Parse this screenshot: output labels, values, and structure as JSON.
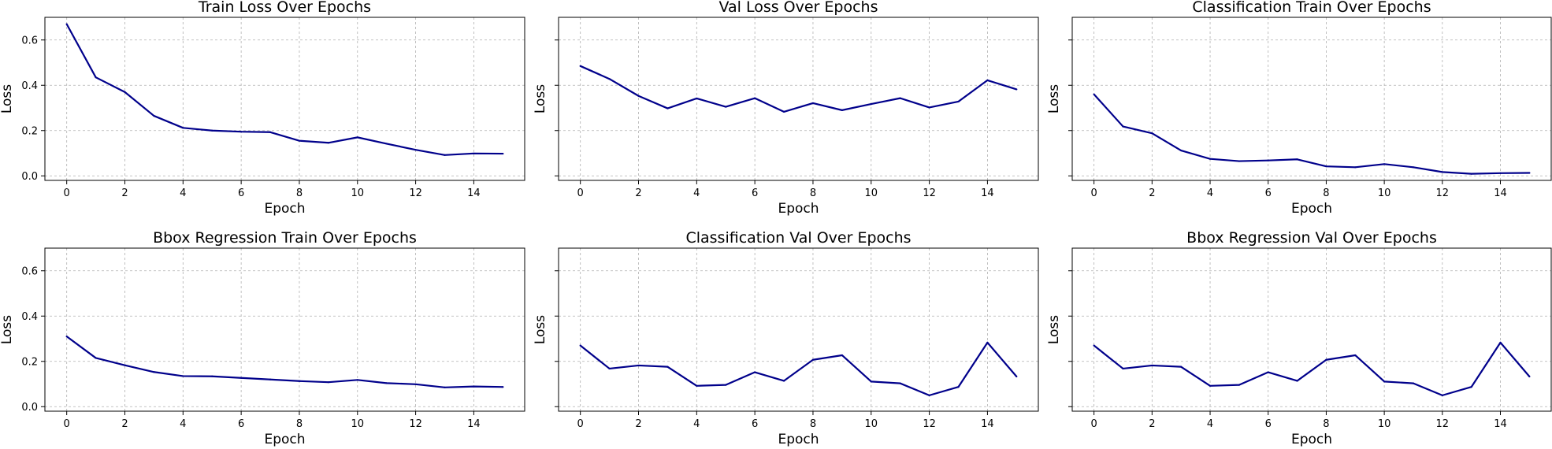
{
  "chart_data": [
    {
      "type": "line",
      "title": "Train Loss Over Epochs",
      "xlabel": "Epoch",
      "ylabel": "Loss",
      "xlim": [
        -0.75,
        15.75
      ],
      "ylim": [
        -0.02,
        0.7
      ],
      "xticks": [
        "0",
        "2",
        "4",
        "6",
        "8",
        "10",
        "12",
        "14"
      ],
      "yticks": [
        "0.0",
        "0.2",
        "0.4",
        "0.6"
      ],
      "show_ytick_labels": true,
      "grid": true,
      "color": "#00008b",
      "x": [
        0,
        1,
        2,
        3,
        4,
        5,
        6,
        7,
        8,
        9,
        10,
        11,
        12,
        13,
        14,
        15
      ],
      "y": [
        0.67,
        0.435,
        0.37,
        0.265,
        0.212,
        0.2,
        0.195,
        0.193,
        0.155,
        0.146,
        0.17,
        0.142,
        0.115,
        0.092,
        0.099,
        0.098
      ]
    },
    {
      "type": "line",
      "title": "Val Loss Over Epochs",
      "xlabel": "Epoch",
      "ylabel": "Loss",
      "xlim": [
        -0.75,
        15.75
      ],
      "ylim": [
        -0.02,
        0.7
      ],
      "xticks": [
        "0",
        "2",
        "4",
        "6",
        "8",
        "10",
        "12",
        "14"
      ],
      "yticks": [
        "0.0",
        "0.2",
        "0.4",
        "0.6"
      ],
      "show_ytick_labels": false,
      "grid": true,
      "color": "#00008b",
      "x": [
        0,
        1,
        2,
        3,
        4,
        5,
        6,
        7,
        8,
        9,
        10,
        11,
        12,
        13,
        14,
        15
      ],
      "y": [
        0.485,
        0.428,
        0.353,
        0.298,
        0.342,
        0.305,
        0.343,
        0.283,
        0.321,
        0.29,
        0.317,
        0.343,
        0.302,
        0.328,
        0.422,
        0.382
      ]
    },
    {
      "type": "line",
      "title": "Classification Train Over Epochs",
      "xlabel": "Epoch",
      "ylabel": "Loss",
      "xlim": [
        -0.75,
        15.75
      ],
      "ylim": [
        -0.02,
        0.7
      ],
      "xticks": [
        "0",
        "2",
        "4",
        "6",
        "8",
        "10",
        "12",
        "14"
      ],
      "yticks": [
        "0.0",
        "0.2",
        "0.4",
        "0.6"
      ],
      "show_ytick_labels": false,
      "grid": true,
      "color": "#00008b",
      "x": [
        0,
        1,
        2,
        3,
        4,
        5,
        6,
        7,
        8,
        9,
        10,
        11,
        12,
        13,
        14,
        15
      ],
      "y": [
        0.36,
        0.218,
        0.188,
        0.112,
        0.075,
        0.065,
        0.068,
        0.073,
        0.042,
        0.038,
        0.052,
        0.038,
        0.017,
        0.009,
        0.012,
        0.013
      ]
    },
    {
      "type": "line",
      "title": "Bbox Regression Train Over Epochs",
      "xlabel": "Epoch",
      "ylabel": "Loss",
      "xlim": [
        -0.75,
        15.75
      ],
      "ylim": [
        -0.02,
        0.7
      ],
      "xticks": [
        "0",
        "2",
        "4",
        "6",
        "8",
        "10",
        "12",
        "14"
      ],
      "yticks": [
        "0.0",
        "0.2",
        "0.4",
        "0.6"
      ],
      "show_ytick_labels": true,
      "grid": true,
      "color": "#00008b",
      "x": [
        0,
        1,
        2,
        3,
        4,
        5,
        6,
        7,
        8,
        9,
        10,
        11,
        12,
        13,
        14,
        15
      ],
      "y": [
        0.31,
        0.215,
        0.183,
        0.153,
        0.135,
        0.134,
        0.127,
        0.12,
        0.113,
        0.108,
        0.118,
        0.104,
        0.099,
        0.085,
        0.089,
        0.087
      ]
    },
    {
      "type": "line",
      "title": "Classification Val Over Epochs",
      "xlabel": "Epoch",
      "ylabel": "Loss",
      "xlim": [
        -0.75,
        15.75
      ],
      "ylim": [
        -0.02,
        0.7
      ],
      "xticks": [
        "0",
        "2",
        "4",
        "6",
        "8",
        "10",
        "12",
        "14"
      ],
      "yticks": [
        "0.0",
        "0.2",
        "0.4",
        "0.6"
      ],
      "show_ytick_labels": false,
      "grid": true,
      "color": "#00008b",
      "x": [
        0,
        1,
        2,
        3,
        4,
        5,
        6,
        7,
        8,
        9,
        10,
        11,
        12,
        13,
        14,
        15
      ],
      "y": [
        0.27,
        0.168,
        0.182,
        0.176,
        0.092,
        0.096,
        0.152,
        0.114,
        0.207,
        0.227,
        0.111,
        0.103,
        0.05,
        0.087,
        0.283,
        0.133
      ]
    },
    {
      "type": "line",
      "title": "Bbox Regression Val Over Epochs",
      "xlabel": "Epoch",
      "ylabel": "Loss",
      "xlim": [
        -0.75,
        15.75
      ],
      "ylim": [
        -0.02,
        0.7
      ],
      "xticks": [
        "0",
        "2",
        "4",
        "6",
        "8",
        "10",
        "12",
        "14"
      ],
      "yticks": [
        "0.0",
        "0.2",
        "0.4",
        "0.6"
      ],
      "show_ytick_labels": false,
      "grid": true,
      "color": "#00008b",
      "x": [
        0,
        1,
        2,
        3,
        4,
        5,
        6,
        7,
        8,
        9,
        10,
        11,
        12,
        13,
        14,
        15
      ],
      "y": [
        0.27,
        0.168,
        0.182,
        0.176,
        0.092,
        0.096,
        0.152,
        0.114,
        0.207,
        0.227,
        0.111,
        0.103,
        0.05,
        0.087,
        0.283,
        0.133
      ]
    }
  ]
}
